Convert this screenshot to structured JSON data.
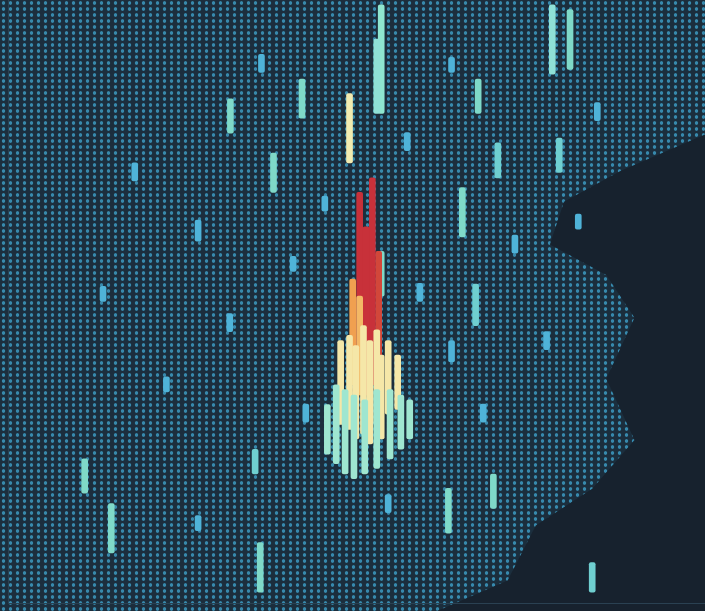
{
  "chart_data": {
    "type": "bar",
    "x": [
      15,
      25,
      30,
      40,
      60,
      65,
      75,
      85,
      70,
      42,
      20,
      58,
      45,
      35,
      65,
      88,
      80,
      10,
      55,
      25,
      80.9,
      83.7,
      53.9,
      53.2,
      41.4,
      69.2,
      30.1,
      48.9,
      82,
      72.3,
      36.9,
      66.7,
      68.8,
      53.9,
      7.1,
      34,
      71.6,
      64.5,
      11.3,
      34.8,
      87.2,
      53.5,
      52.5,
      50.5,
      51.5,
      49.4,
      50.5,
      56.5,
      55,
      47.5,
      48.9,
      51.1,
      53.2,
      49.9,
      53.9,
      52.1,
      58.4,
      57,
      45.4,
      55.3,
      46.8,
      53.2,
      48.2,
      51.3,
      49.6
    ],
    "base": [
      70,
      60,
      45,
      55,
      50,
      40,
      58,
      62,
      30,
      30,
      35,
      75,
      65,
      88,
      88,
      80,
      42,
      50,
      15,
      12,
      87.7,
      88.5,
      81.2,
      81.2,
      80.4,
      81.2,
      77.9,
      73.0,
      71.4,
      70.5,
      68.1,
      60.7,
      46.0,
      50.9,
      18.2,
      21.4,
      15.7,
      11.6,
      8.3,
      1.8,
      1.8,
      37.0,
      36.2,
      35.4,
      34.5,
      36.2,
      34.5,
      32.1,
      31.3,
      29.6,
      28.8,
      28.0,
      29.6,
      27.2,
      27.2,
      26.4,
      27.2,
      25.5,
      24.7,
      23.9,
      23.1,
      22.3,
      21.4,
      21.4,
      20.6
    ],
    "values": [
      3,
      3.5,
      3,
      2.5,
      3,
      3.5,
      3,
      2.5,
      3,
      3,
      2.5,
      3,
      2.5,
      3,
      2.5,
      3,
      3,
      2.5,
      3,
      2.5,
      11.5,
      9.9,
      18,
      12.3,
      6.5,
      5.7,
      5.7,
      11.5,
      5.7,
      5.8,
      6.5,
      8.2,
      6.9,
      7.4,
      5.7,
      4.1,
      5.7,
      7.4,
      8.2,
      8.2,
      4.9,
      21.3,
      34.3,
      32.7,
      27.9,
      17.5,
      16.4,
      9,
      12.2,
      13.9,
      15.6,
      18,
      15.7,
      15.5,
      13.9,
      17.1,
      6.5,
      9,
      8.2,
      11.5,
      13.1,
      13.1,
      14,
      12.3,
      13.9
    ],
    "colors": [
      "#4fb3d8",
      "#4fb3d8",
      "#4fb3d8",
      "#4fb3d8",
      "#4fb3d8",
      "#4fb3d8",
      "#4fb3d8",
      "#4fb3d8",
      "#4fb3d8",
      "#4fb3d8",
      "#4fb3d8",
      "#4fb3d8",
      "#4fb3d8",
      "#4fb3d8",
      "#4fb3d8",
      "#4fb3d8",
      "#4fb3d8",
      "#4fb3d8",
      "#4fb3d8",
      "#4fb3d8",
      "#8fe0d6",
      "#7fd9c8",
      "#8fe6cf",
      "#8fe0d6",
      "#7fd9c8",
      "#7fd9c8",
      "#7fd9c8",
      "#f2ebb0",
      "#6fcfd0",
      "#6fcfd0",
      "#7fd9c8",
      "#7fd9c8",
      "#6fcfd0",
      "#7fd9c8",
      "#7fd9c8",
      "#6fcfd0",
      "#7fd9c8",
      "#7fd9c8",
      "#7fd9c8",
      "#7fd9c8",
      "#6fcfd0",
      "#d2473a",
      "#c8313a",
      "#c8313a",
      "#c8313a",
      "#f0a050",
      "#f3b866",
      "#f5e7a8",
      "#f5e7a8",
      "#f5e7a8",
      "#f5e7a8",
      "#f5e7a8",
      "#f5e7a8",
      "#f5e7a8",
      "#f5e7a8",
      "#f5e7a8",
      "#9fe6d0",
      "#9fe6d0",
      "#9fe6d0",
      "#9fe6d0",
      "#9fe6d0",
      "#9fe6d0",
      "#9fe6d0",
      "#9fe6d0",
      "#9fe6d0"
    ],
    "xlim": [
      0,
      100
    ],
    "ylim": [
      0,
      100
    ],
    "tick_labels": false,
    "grid": false
  }
}
